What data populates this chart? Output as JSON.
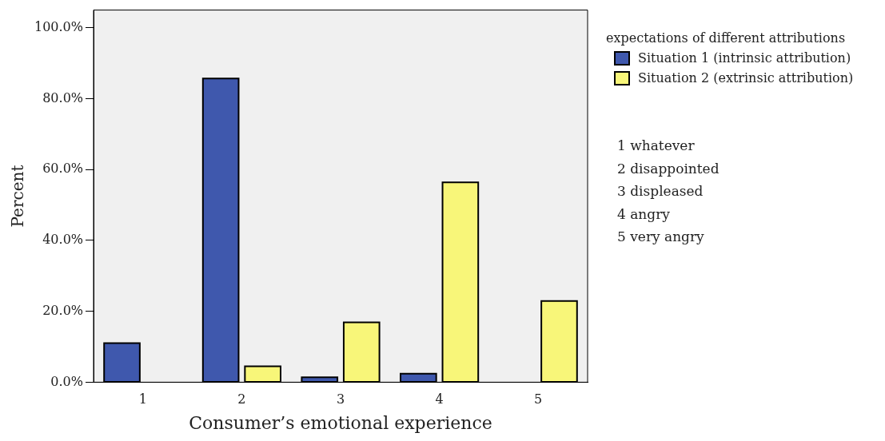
{
  "chart_data": {
    "type": "bar",
    "xlabel": "Consumer’s emotional experience",
    "ylabel": "Percent",
    "legend_title": "expectations of different attributions",
    "categories": [
      "1",
      "2",
      "3",
      "4",
      "5"
    ],
    "series": [
      {
        "name": "Situation 1 (intrinsic attribution)",
        "color": "#3f58ad",
        "values": [
          11.0,
          85.7,
          1.4,
          2.4,
          0
        ]
      },
      {
        "name": "Situation 2 (extrinsic attribution)",
        "color": "#f8f679",
        "values": [
          0,
          4.5,
          16.9,
          56.4,
          22.9
        ]
      }
    ],
    "ylim": [
      0,
      105
    ],
    "yticks": [
      {
        "value": 0,
        "label": "0.0%"
      },
      {
        "value": 20,
        "label": "20.0%"
      },
      {
        "value": 40,
        "label": "40.0%"
      },
      {
        "value": 60,
        "label": "60.0%"
      },
      {
        "value": 80,
        "label": "80.0%"
      },
      {
        "value": 100,
        "label": "100.0%"
      }
    ],
    "grid": false,
    "legend": "top right",
    "annotations": [
      "1 whatever",
      "2 disappointed",
      "3 displeased",
      "4 angry",
      "5 very angry"
    ]
  }
}
